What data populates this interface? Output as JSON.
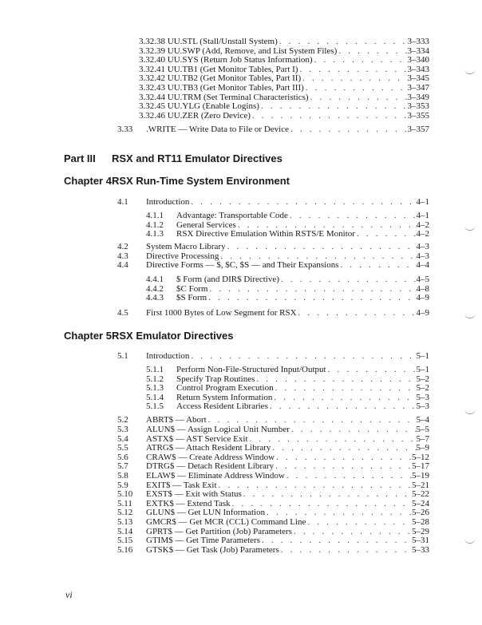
{
  "top_entries": [
    {
      "title": "3.32.38 UU.STL (Stall/Unstall System)",
      "page": "3–333"
    },
    {
      "title": "3.32.39 UU.SWP (Add, Remove, and List System Files)",
      "page": "3–334"
    },
    {
      "title": "3.32.40 UU.SYS (Return Job Status Information)",
      "page": "3–340"
    },
    {
      "title": "3.32.41 UU.TB1 (Get Monitor Tables, Part I)",
      "page": "3–343"
    },
    {
      "title": "3.32.42 UU.TB2 (Get Monitor Tables, Part II)",
      "page": "3–345"
    },
    {
      "title": "3.32.43 UU.TB3 (Get Monitor Tables, Part III)",
      "page": "3–347"
    },
    {
      "title": "3.32.44 UU.TRM (Set Terminal Characteristics)",
      "page": "3–349"
    },
    {
      "title": "3.32.45 UU.YLG (Enable Logins)",
      "page": "3–353"
    },
    {
      "title": "3.32.46 UU.ZER (Zero Device)",
      "page": "3–355"
    }
  ],
  "s333": {
    "num": "3.33",
    "title": ".WRITE — Write Data to File or Device",
    "page": "3–357"
  },
  "part": {
    "label": "Part III",
    "title": "RSX and RT11 Emulator Directives"
  },
  "ch4": {
    "label": "Chapter 4",
    "title": "RSX Run-Time System Environment"
  },
  "ch4_entries": [
    {
      "num": "4.1",
      "title": "Introduction",
      "page": "4–1",
      "level": 1
    },
    {
      "num": "4.1.1",
      "title": "Advantage: Transportable Code",
      "page": "4–1",
      "level": 2
    },
    {
      "num": "4.1.2",
      "title": "General Services",
      "page": "4–2",
      "level": 2
    },
    {
      "num": "4.1.3",
      "title": "RSX Directive Emulation Within RSTS/E Monitor",
      "page": "4–2",
      "level": 2
    },
    {
      "num": "4.2",
      "title": "System Macro Library",
      "page": "4–3",
      "level": 1
    },
    {
      "num": "4.3",
      "title": "Directive Processing",
      "page": "4–3",
      "level": 1
    },
    {
      "num": "4.4",
      "title": "Directive Forms — $, $C, $S — and Their Expansions",
      "page": "4–4",
      "level": 1
    },
    {
      "num": "4.4.1",
      "title": "$ Form (and DIR$ Directive)",
      "page": "4–5",
      "level": 2
    },
    {
      "num": "4.4.2",
      "title": "$C Form",
      "page": "4–8",
      "level": 2
    },
    {
      "num": "4.4.3",
      "title": "$S Form",
      "page": "4–9",
      "level": 2
    },
    {
      "num": "4.5",
      "title": "First 1000 Bytes of Low Segment for RSX",
      "page": "4–9",
      "level": 1
    }
  ],
  "ch5": {
    "label": "Chapter 5",
    "title": "RSX Emulator Directives"
  },
  "ch5_entries": [
    {
      "num": "5.1",
      "title": "Introduction",
      "page": "5–1",
      "level": 1
    },
    {
      "num": "5.1.1",
      "title": "Perform Non-File-Structured Input/Output",
      "page": "5–1",
      "level": 2
    },
    {
      "num": "5.1.2",
      "title": "Specify Trap Routines",
      "page": "5–2",
      "level": 2
    },
    {
      "num": "5.1.3",
      "title": "Control Program Execution",
      "page": "5–2",
      "level": 2
    },
    {
      "num": "5.1.4",
      "title": "Return System Information",
      "page": "5–3",
      "level": 2
    },
    {
      "num": "5.1.5",
      "title": "Access Resident Libraries",
      "page": "5–3",
      "level": 2
    },
    {
      "num": "5.2",
      "title": "ABRT$ — Abort",
      "page": "5–4",
      "level": 1
    },
    {
      "num": "5.3",
      "title": "ALUN$ — Assign Logical Unit Number",
      "page": "5–5",
      "level": 1
    },
    {
      "num": "5.4",
      "title": "ASTX$ — AST Service Exit",
      "page": "5–7",
      "level": 1
    },
    {
      "num": "5.5",
      "title": "ATRG$ — Attach Resident Library",
      "page": "5–9",
      "level": 1
    },
    {
      "num": "5.6",
      "title": "CRAW$ — Create Address Window",
      "page": "5–12",
      "level": 1
    },
    {
      "num": "5.7",
      "title": "DTRG$ — Detach Resident Library",
      "page": "5–17",
      "level": 1
    },
    {
      "num": "5.8",
      "title": "ELAW$ — Eliminate Address Window",
      "page": "5–19",
      "level": 1
    },
    {
      "num": "5.9",
      "title": "EXIT$ — Task Exit",
      "page": "5–21",
      "level": 1
    },
    {
      "num": "5.10",
      "title": "EXST$ — Exit with Status",
      "page": "5–22",
      "level": 1
    },
    {
      "num": "5.11",
      "title": "EXTK$ — Extend Task",
      "page": "5–24",
      "level": 1
    },
    {
      "num": "5.12",
      "title": "GLUN$ — Get LUN Information",
      "page": "5–26",
      "level": 1
    },
    {
      "num": "5.13",
      "title": "GMCR$ — Get MCR (CCL) Command Line",
      "page": "5–28",
      "level": 1
    },
    {
      "num": "5.14",
      "title": "GPRT$ — Get Partition (Job) Parameters",
      "page": "5–29",
      "level": 1
    },
    {
      "num": "5.15",
      "title": "GTIM$ — Get Time Parameters",
      "page": "5–31",
      "level": 1
    },
    {
      "num": "5.16",
      "title": "GTSK$ — Get Task (Job) Parameters",
      "page": "5–33",
      "level": 1
    }
  ],
  "folio": "vi"
}
